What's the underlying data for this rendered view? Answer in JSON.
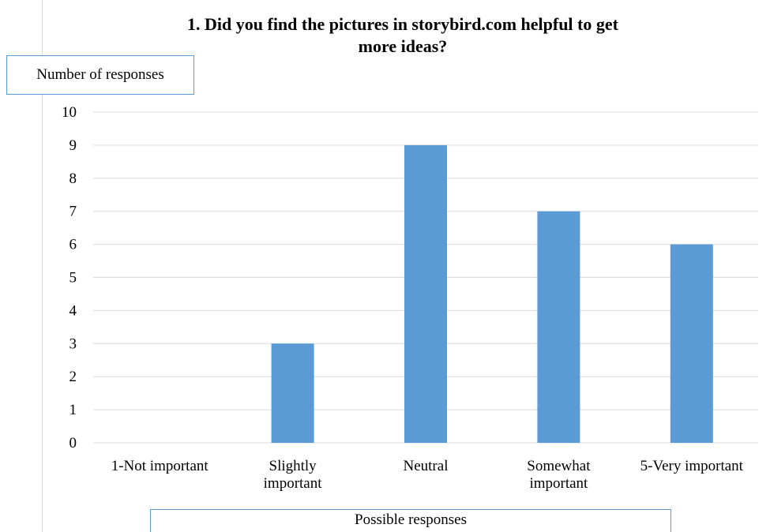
{
  "chart_data": {
    "type": "bar",
    "title": "1. Did you find the pictures in storybird.com helpful to get more ideas?",
    "title_lines": [
      "1. Did you find the pictures in storybird.com helpful to get",
      "more ideas?"
    ],
    "ylabel": "Number of responses",
    "xlabel": "Possible responses",
    "categories": [
      "1-Not important",
      "Slightly important",
      "Neutral",
      "Somewhat important",
      "5-Very important"
    ],
    "category_label_lines": [
      [
        "1-Not important"
      ],
      [
        "Slightly",
        "important"
      ],
      [
        "Neutral"
      ],
      [
        "Somewhat",
        "important"
      ],
      [
        "5-Very important"
      ]
    ],
    "values": [
      0,
      3,
      9,
      7,
      6
    ],
    "ylim": [
      0,
      10
    ],
    "yticks": [
      "0",
      "1",
      "2",
      "3",
      "4",
      "5",
      "6",
      "7",
      "8",
      "9",
      "10"
    ],
    "grid": true,
    "bar_color": "#5b9bd5",
    "grid_color": "#d9d9d9"
  }
}
